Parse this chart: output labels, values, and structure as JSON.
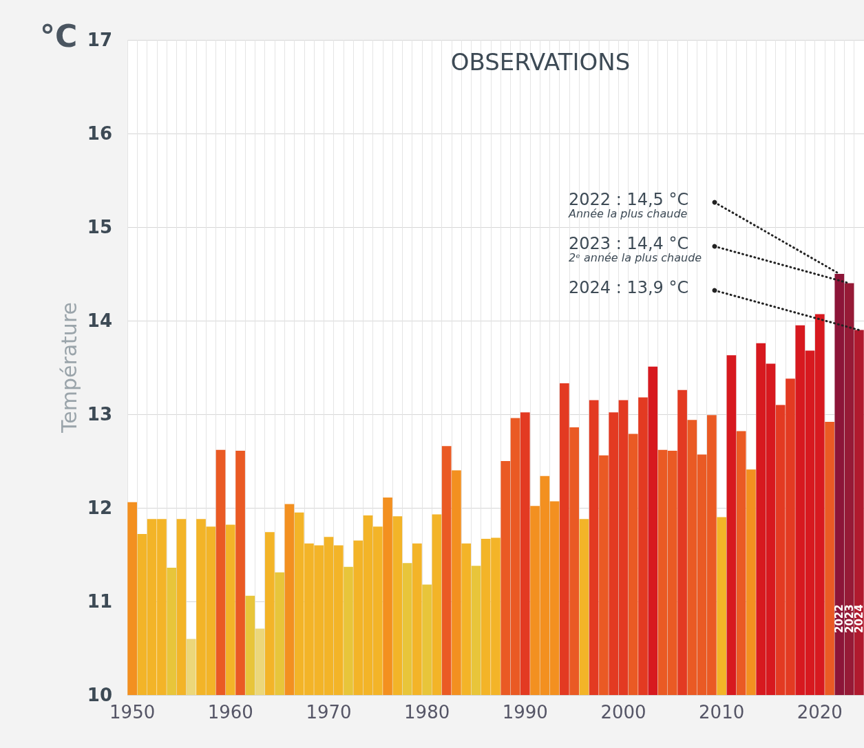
{
  "chart_data": {
    "type": "bar",
    "title": "OBSERVATIONS",
    "ylabel": "Température",
    "categories": [
      "1950",
      null,
      null,
      null,
      null,
      null,
      null,
      null,
      null,
      null,
      "1960",
      null,
      null,
      null,
      null,
      null,
      null,
      null,
      null,
      null,
      "1970",
      null,
      null,
      null,
      null,
      null,
      null,
      null,
      null,
      null,
      "1980",
      null,
      null,
      null,
      null,
      null,
      null,
      null,
      null,
      null,
      "1990",
      null,
      null,
      null,
      null,
      null,
      null,
      null,
      null,
      null,
      "2000",
      null,
      null,
      null,
      null,
      null,
      null,
      null,
      null,
      null,
      "2010",
      null,
      null,
      null,
      null,
      null,
      null,
      null,
      null,
      null,
      "2020",
      null,
      "2022",
      "2023",
      "2024"
    ],
    "series": [
      {
        "values": [
          12.06,
          11.72,
          11.88,
          11.88,
          11.36,
          11.88,
          10.6,
          11.88,
          11.8,
          12.62,
          11.82,
          12.61,
          11.06,
          10.71,
          11.74,
          11.31,
          12.04,
          11.95,
          11.62,
          11.6,
          11.69,
          11.6,
          11.37,
          11.65,
          11.92,
          11.8,
          12.11,
          11.91,
          11.41,
          11.62,
          11.18,
          11.93,
          12.66,
          12.4,
          11.62,
          11.38,
          11.67,
          11.68,
          12.5,
          12.96,
          13.02,
          12.02,
          12.34,
          12.07,
          13.33,
          12.86,
          11.88,
          13.15,
          12.56,
          13.02,
          13.15,
          12.79,
          13.18,
          13.51,
          12.62,
          12.61,
          13.26,
          12.94,
          12.57,
          12.99,
          11.9,
          13.63,
          12.82,
          12.41,
          13.76,
          13.54,
          13.1,
          13.38,
          13.95,
          13.68,
          14.07,
          12.92,
          null,
          null,
          null
        ],
        "colors": [
          "#f39020",
          "#f3b428",
          "#f3b428",
          "#f3b428",
          "#e8c53a",
          "#f3b428",
          "#ecd77a",
          "#f3b428",
          "#f3b428",
          "#ea5a24",
          "#f3b428",
          "#ea5a24",
          "#e8c53a",
          "#ecd77a",
          "#f3b428",
          "#e8c53a",
          "#f39020",
          "#f3b428",
          "#f3b428",
          "#f3b428",
          "#f3b428",
          "#f3b428",
          "#e8c53a",
          "#f3b428",
          "#f3b428",
          "#f3b428",
          "#f39020",
          "#f3b428",
          "#e8c53a",
          "#f3b428",
          "#e8c53a",
          "#f3b428",
          "#ea5a24",
          "#f39020",
          "#f3b428",
          "#e8c53a",
          "#f3b428",
          "#f3b428",
          "#ea5a24",
          "#ea5a24",
          "#e33a22",
          "#f39020",
          "#f39020",
          "#f39020",
          "#e33a22",
          "#ea5a24",
          "#f3b428",
          "#e33a22",
          "#ea5a24",
          "#e33a22",
          "#e33a22",
          "#ea5a24",
          "#e33a22",
          "#d7191f",
          "#ea5a24",
          "#ea5a24",
          "#e33a22",
          "#ea5a24",
          "#ea5a24",
          "#ea5a24",
          "#f3b428",
          "#d7191f",
          "#ea5a24",
          "#f39020",
          "#d7191f",
          "#d7191f",
          "#e33a22",
          "#e33a22",
          "#d7191f",
          "#d7191f",
          "#d7191f",
          "#ea5a24",
          null,
          null,
          null
        ]
      },
      {
        "values": [
          null,
          null,
          null,
          null,
          null,
          null,
          null,
          null,
          null,
          null,
          null,
          null,
          null,
          null,
          null,
          null,
          null,
          null,
          null,
          null,
          null,
          null,
          null,
          null,
          null,
          null,
          null,
          null,
          null,
          null,
          null,
          null,
          null,
          null,
          null,
          null,
          null,
          null,
          null,
          null,
          null,
          null,
          null,
          null,
          null,
          null,
          null,
          null,
          null,
          null,
          null,
          null,
          null,
          null,
          null,
          null,
          null,
          null,
          null,
          null,
          null,
          null,
          null,
          null,
          null,
          null,
          null,
          null,
          null,
          null,
          null,
          null,
          14.5,
          14.4,
          13.9
        ],
        "colors": [
          null,
          null,
          null,
          null,
          null,
          null,
          null,
          null,
          null,
          null,
          null,
          null,
          null,
          null,
          null,
          null,
          null,
          null,
          null,
          null,
          null,
          null,
          null,
          null,
          null,
          null,
          null,
          null,
          null,
          null,
          null,
          null,
          null,
          null,
          null,
          null,
          null,
          null,
          null,
          null,
          null,
          null,
          null,
          null,
          null,
          null,
          null,
          null,
          null,
          null,
          null,
          null,
          null,
          null,
          null,
          null,
          null,
          null,
          null,
          null,
          null,
          null,
          null,
          null,
          null,
          null,
          null,
          null,
          null,
          null,
          null,
          null,
          "#8c1538",
          "#961a36",
          "#b01a2e"
        ]
      }
    ],
    "ylim": [
      10,
      17
    ],
    "yticks": [
      10,
      11,
      12,
      13,
      14,
      15,
      16,
      17
    ],
    "grid": true,
    "annotations": [
      "°C",
      "2022 : 14,5 °C",
      "Année la plus chaude",
      "2023 : 14,4 °C",
      "2ᵉ année la plus chaude",
      "2024 : 13,9 °C"
    ]
  }
}
